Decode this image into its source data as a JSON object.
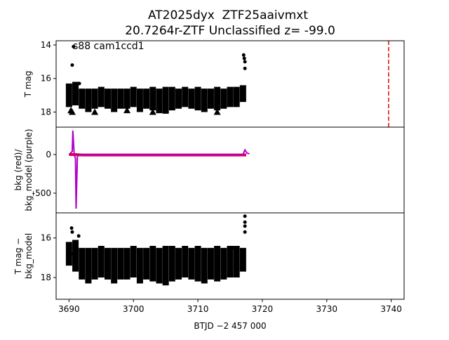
{
  "chart_data": [
    {
      "type": "errorbar",
      "title": "AT2025dyx  ZTF25aaivmxt",
      "subtitle": "20.7264r-ZTF Unclassified z= -99.0",
      "annotation": "s88 cam1ccd1",
      "ylabel": [
        "T mag"
      ],
      "ylim": [
        18.9,
        13.75
      ],
      "yticks": [
        14,
        16,
        18
      ],
      "vline": {
        "x": 3739.6,
        "color": "#e00000"
      },
      "series": [
        {
          "color": "#000000",
          "marker": "circle",
          "x": [
            3690,
            3691,
            3692,
            3693,
            3694,
            3695,
            3696,
            3697,
            3698,
            3699,
            3700,
            3701,
            3702,
            3703,
            3704,
            3705,
            3706,
            3707,
            3708,
            3709,
            3710,
            3711,
            3712,
            3713,
            3714,
            3715,
            3716,
            3717
          ],
          "values": [
            17.0,
            16.9,
            17.2,
            17.3,
            17.2,
            17.1,
            17.2,
            17.3,
            17.2,
            17.2,
            17.1,
            17.3,
            17.2,
            17.2,
            17.3,
            17.3,
            17.2,
            17.2,
            17.1,
            17.2,
            17.2,
            17.3,
            17.2,
            17.2,
            17.2,
            17.1,
            17.1,
            16.9
          ],
          "errors": [
            0.7,
            0.7,
            0.6,
            0.7,
            0.6,
            0.6,
            0.6,
            0.7,
            0.6,
            0.6,
            0.6,
            0.7,
            0.6,
            0.7,
            0.7,
            0.8,
            0.7,
            0.6,
            0.6,
            0.6,
            0.7,
            0.7,
            0.6,
            0.7,
            0.6,
            0.6,
            0.6,
            0.5
          ]
        },
        {
          "color": "#000000",
          "marker": "circle",
          "x": [
            3690.5,
            3690.7,
            3691.6,
            3717.1,
            3717.2,
            3717.3,
            3717.3
          ],
          "values": [
            15.2,
            14.1,
            16.3,
            14.6,
            14.8,
            15.0,
            15.4
          ]
        },
        {
          "color": "#000000",
          "marker": "triangle",
          "x": [
            3690.3,
            3690.5,
            3694,
            3699,
            3703,
            3704,
            3713
          ],
          "values": [
            17.9,
            18.0,
            18.0,
            17.9,
            18.0,
            17.9,
            18.0
          ]
        }
      ]
    },
    {
      "type": "line",
      "ylabel": [
        "bkg (red)/",
        "bkg_model (purple)"
      ],
      "ylim": [
        -755,
        355
      ],
      "yticks": [
        0,
        -500
      ],
      "series": [
        {
          "color": "#e0003c",
          "width": 4,
          "x": [
            3690,
            3691,
            3692,
            3700,
            3710,
            3717.5
          ],
          "values": [
            0,
            0,
            -5,
            -5,
            -5,
            -5
          ]
        },
        {
          "color": "#b000c8",
          "width": 2,
          "x": [
            3690,
            3690.5,
            3690.6,
            3690.8,
            3691.0,
            3691.1,
            3691.3,
            3692,
            3717,
            3717.3,
            3717.6,
            3718
          ],
          "values": [
            0,
            40,
            310,
            0,
            -50,
            -700,
            -20,
            0,
            0,
            60,
            20,
            10
          ]
        }
      ]
    },
    {
      "type": "errorbar",
      "ylabel": [
        "T mag −",
        "bkg_model"
      ],
      "ylim": [
        19.1,
        14.73
      ],
      "yticks": [
        16,
        18
      ],
      "xlim": [
        3688,
        3742
      ],
      "xticks": [
        3690,
        3700,
        3710,
        3720,
        3730,
        3740
      ],
      "xlabel": "BTJD −2 457 000",
      "series": [
        {
          "color": "#000000",
          "marker": "circle",
          "x": [
            3690,
            3691,
            3692,
            3693,
            3694,
            3695,
            3696,
            3697,
            3698,
            3699,
            3700,
            3701,
            3702,
            3703,
            3704,
            3705,
            3706,
            3707,
            3708,
            3709,
            3710,
            3711,
            3712,
            3713,
            3714,
            3715,
            3716,
            3717
          ],
          "values": [
            16.8,
            16.9,
            17.3,
            17.4,
            17.3,
            17.2,
            17.3,
            17.4,
            17.3,
            17.3,
            17.2,
            17.4,
            17.3,
            17.3,
            17.4,
            17.4,
            17.3,
            17.3,
            17.2,
            17.3,
            17.3,
            17.4,
            17.3,
            17.3,
            17.3,
            17.2,
            17.2,
            17.1
          ],
          "errors": [
            0.6,
            0.8,
            0.8,
            0.9,
            0.8,
            0.8,
            0.8,
            0.9,
            0.8,
            0.8,
            0.8,
            0.9,
            0.8,
            0.9,
            0.9,
            1.0,
            0.9,
            0.8,
            0.8,
            0.8,
            0.9,
            0.9,
            0.8,
            0.9,
            0.8,
            0.8,
            0.8,
            0.6
          ]
        },
        {
          "color": "#000000",
          "marker": "circle",
          "x": [
            3690.4,
            3690.5,
            3691.5,
            3690.6,
            3717.3,
            3717.3,
            3717.3,
            3717.3,
            3715.5
          ],
          "values": [
            15.5,
            15.7,
            15.9,
            16.8,
            14.9,
            15.2,
            15.4,
            15.7,
            16.5
          ]
        }
      ]
    }
  ]
}
